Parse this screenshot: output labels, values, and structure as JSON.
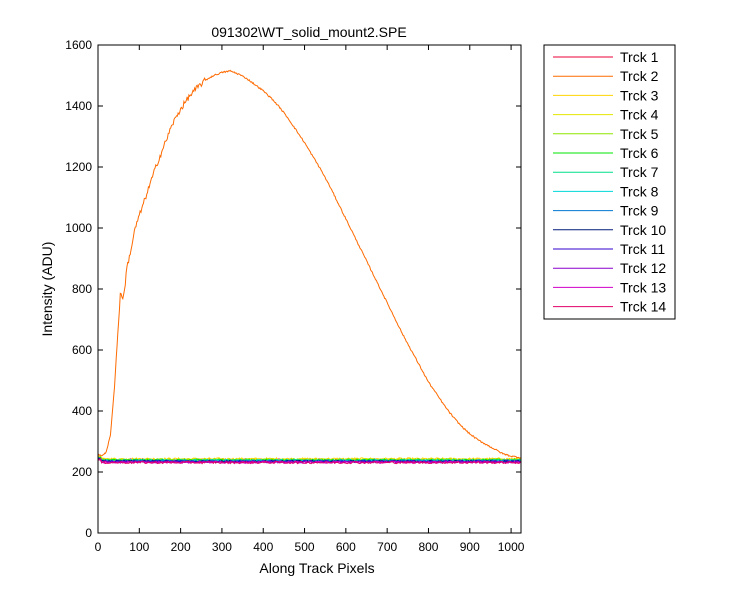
{
  "chart_data": {
    "type": "line",
    "title": "091302\\WT_solid_mount2.SPE",
    "xlabel": "Along Track Pixels",
    "ylabel": "Intensity (ADU)",
    "xlim": [
      0,
      1024
    ],
    "ylim": [
      0,
      1600
    ],
    "xticks": [
      0,
      100,
      200,
      300,
      400,
      500,
      600,
      700,
      800,
      900,
      1000
    ],
    "yticks": [
      0,
      200,
      400,
      600,
      800,
      1000,
      1200,
      1400,
      1600
    ],
    "grid": false,
    "legend_position": "outside-right",
    "series": [
      {
        "name": "Trck 1",
        "color": "#e8003a",
        "baseline": 240
      },
      {
        "name": "Trck 2",
        "color": "#ff6a00",
        "x": [
          0,
          10,
          20,
          30,
          40,
          50,
          55,
          60,
          65,
          70,
          80,
          90,
          100,
          120,
          140,
          160,
          180,
          200,
          220,
          240,
          260,
          280,
          300,
          320,
          340,
          360,
          380,
          400,
          420,
          440,
          460,
          480,
          500,
          520,
          540,
          560,
          580,
          600,
          620,
          640,
          660,
          680,
          700,
          720,
          740,
          760,
          780,
          800,
          820,
          840,
          860,
          880,
          900,
          920,
          940,
          960,
          980,
          1000,
          1020
        ],
        "values": [
          255,
          255,
          265,
          320,
          480,
          700,
          800,
          760,
          810,
          870,
          930,
          1000,
          1040,
          1120,
          1200,
          1270,
          1340,
          1390,
          1430,
          1460,
          1485,
          1500,
          1510,
          1515,
          1505,
          1490,
          1470,
          1450,
          1425,
          1395,
          1360,
          1320,
          1280,
          1235,
          1190,
          1140,
          1085,
          1030,
          975,
          920,
          865,
          810,
          755,
          700,
          645,
          595,
          545,
          495,
          455,
          415,
          380,
          350,
          325,
          305,
          290,
          275,
          260,
          252,
          248
        ]
      },
      {
        "name": "Trck 3",
        "color": "#ffd400",
        "baseline": 243
      },
      {
        "name": "Trck 4",
        "color": "#e6e600",
        "baseline": 241
      },
      {
        "name": "Trck 5",
        "color": "#8fe600",
        "baseline": 240
      },
      {
        "name": "Trck 6",
        "color": "#00e600",
        "baseline": 239
      },
      {
        "name": "Trck 7",
        "color": "#00e08a",
        "baseline": 238
      },
      {
        "name": "Trck 8",
        "color": "#00d8d8",
        "baseline": 237
      },
      {
        "name": "Trck 9",
        "color": "#0077d0",
        "baseline": 236
      },
      {
        "name": "Trck 10",
        "color": "#001a7a",
        "baseline": 235
      },
      {
        "name": "Trck 11",
        "color": "#3300cc",
        "baseline": 234
      },
      {
        "name": "Trck 12",
        "color": "#8800cc",
        "baseline": 233
      },
      {
        "name": "Trck 13",
        "color": "#d000c8",
        "baseline": 232
      },
      {
        "name": "Trck 14",
        "color": "#e0006a",
        "baseline": 231
      }
    ]
  }
}
